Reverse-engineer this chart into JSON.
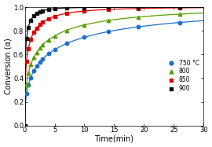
{
  "title": "",
  "xlabel": "Time(min)",
  "ylabel": "Conversion (α)",
  "xlim": [
    0,
    30
  ],
  "ylim": [
    0,
    1.0
  ],
  "xticks": [
    0,
    5,
    10,
    15,
    20,
    25,
    30
  ],
  "yticks": [
    0,
    0.2,
    0.4,
    0.6,
    0.8,
    1.0
  ],
  "series": [
    {
      "label": "750 °C",
      "color": "#1e6fcc",
      "marker": "o",
      "k": 0.52,
      "n": 0.42
    },
    {
      "label": "800",
      "color": "#5a9e00",
      "marker": "^",
      "k": 0.72,
      "n": 0.42
    },
    {
      "label": "850",
      "color": "#dd0000",
      "marker": "s",
      "k": 1.3,
      "n": 0.42
    },
    {
      "label": "900",
      "color": "#111111",
      "marker": "s",
      "k": 2.2,
      "n": 0.42
    }
  ],
  "marker_times": [
    0.0,
    0.3,
    0.6,
    1.0,
    1.5,
    2.0,
    2.5,
    3.0,
    4.0,
    5.0,
    7.0,
    10.0,
    14.0,
    19.0,
    26.0
  ],
  "figsize": [
    2.7,
    1.87
  ],
  "dpi": 100,
  "legend_fontsize": 5.5,
  "axis_fontsize": 7,
  "tick_fontsize": 6
}
